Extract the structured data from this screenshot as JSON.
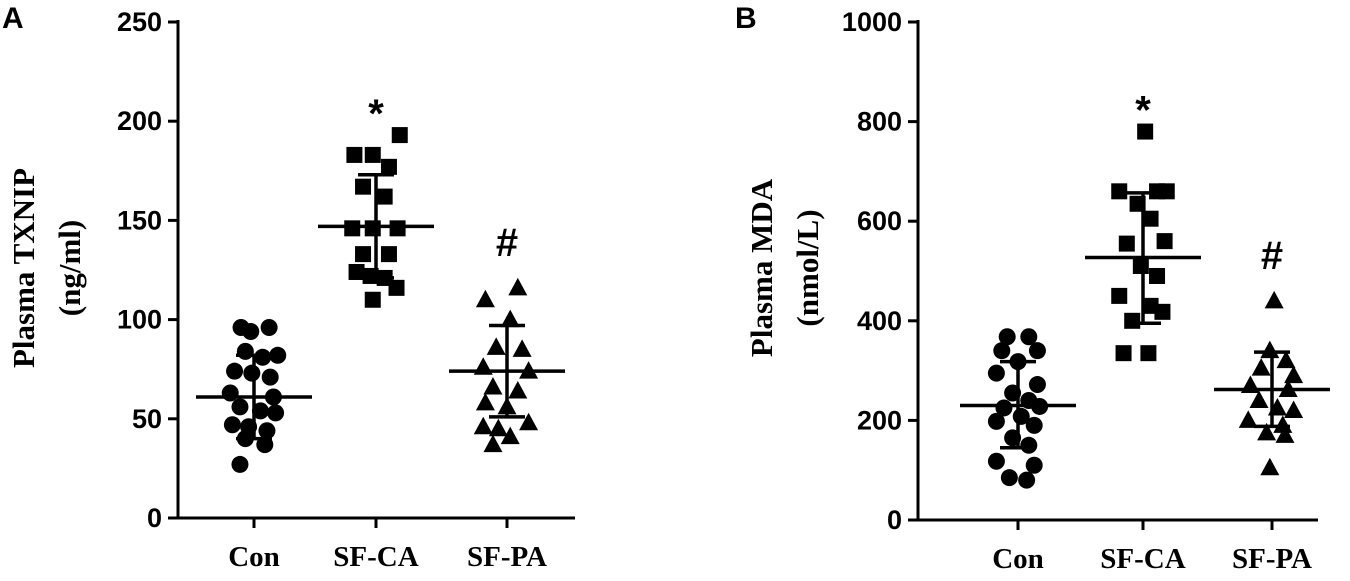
{
  "chart_data": [
    {
      "type": "scatter",
      "panel_label": "A",
      "ylabel_line1": "Plasma TXNIP",
      "ylabel_line2": "(ng/ml)",
      "xlabel": "",
      "categories": [
        "Con",
        "SF-CA",
        "SF-PA"
      ],
      "ylim": [
        0,
        250
      ],
      "yticks": [
        0,
        50,
        100,
        150,
        200,
        250
      ],
      "markers": [
        "circle",
        "square",
        "triangle"
      ],
      "significance": [
        "",
        "*",
        "#"
      ],
      "series": [
        {
          "mean": 61,
          "sd_low": 40,
          "sd_high": 82,
          "points": [
            [
              -0.12,
              96
            ],
            [
              -0.03,
              94
            ],
            [
              0.14,
              96
            ],
            [
              -0.08,
              84
            ],
            [
              0.08,
              81
            ],
            [
              0.22,
              82
            ],
            [
              -0.18,
              74
            ],
            [
              -0.02,
              73
            ],
            [
              0.15,
              71
            ],
            [
              -0.22,
              63
            ],
            [
              0.18,
              61
            ],
            [
              -0.13,
              56
            ],
            [
              0.06,
              54
            ],
            [
              0.2,
              53
            ],
            [
              -0.2,
              47
            ],
            [
              -0.05,
              46
            ],
            [
              0.12,
              44
            ],
            [
              -0.08,
              40
            ],
            [
              0.1,
              37
            ],
            [
              -0.13,
              27
            ]
          ]
        },
        {
          "mean": 147,
          "sd_low": 121,
          "sd_high": 173,
          "points": [
            [
              0.22,
              193
            ],
            [
              -0.2,
              183
            ],
            [
              -0.03,
              183
            ],
            [
              0.12,
              177
            ],
            [
              -0.12,
              167
            ],
            [
              0.08,
              162
            ],
            [
              -0.22,
              146
            ],
            [
              -0.03,
              146
            ],
            [
              0.2,
              146
            ],
            [
              -0.12,
              133
            ],
            [
              0.12,
              133
            ],
            [
              -0.18,
              124
            ],
            [
              -0.05,
              122
            ],
            [
              0.08,
              121
            ],
            [
              0.19,
              116
            ],
            [
              -0.03,
              110
            ]
          ]
        },
        {
          "mean": 74,
          "sd_low": 51,
          "sd_high": 97,
          "points": [
            [
              0.1,
              116
            ],
            [
              -0.2,
              110
            ],
            [
              0.03,
              100
            ],
            [
              -0.1,
              86
            ],
            [
              0.14,
              85
            ],
            [
              -0.22,
              76
            ],
            [
              0.2,
              74
            ],
            [
              -0.13,
              66
            ],
            [
              0.1,
              64
            ],
            [
              -0.2,
              58
            ],
            [
              0.0,
              56
            ],
            [
              -0.22,
              46
            ],
            [
              0.2,
              48
            ],
            [
              -0.08,
              45
            ],
            [
              0.03,
              41
            ],
            [
              -0.13,
              37
            ]
          ]
        }
      ]
    },
    {
      "type": "scatter",
      "panel_label": "B",
      "ylabel_line1": "Plasma MDA",
      "ylabel_line2": "(nmol/L)",
      "xlabel": "",
      "categories": [
        "Con",
        "SF-CA",
        "SF-PA"
      ],
      "ylim": [
        0,
        1000
      ],
      "yticks": [
        0,
        200,
        400,
        600,
        800,
        1000
      ],
      "markers": [
        "circle",
        "square",
        "triangle"
      ],
      "significance": [
        "",
        "*",
        "#"
      ],
      "series": [
        {
          "mean": 230,
          "sd_low": 145,
          "sd_high": 318,
          "points": [
            [
              -0.1,
              368
            ],
            [
              0.1,
              368
            ],
            [
              -0.15,
              340
            ],
            [
              0.18,
              340
            ],
            [
              0.0,
              318
            ],
            [
              -0.2,
              295
            ],
            [
              0.18,
              272
            ],
            [
              -0.05,
              255
            ],
            [
              0.1,
              240
            ],
            [
              -0.13,
              225
            ],
            [
              0.2,
              228
            ],
            [
              0.03,
              208
            ],
            [
              -0.2,
              198
            ],
            [
              0.15,
              190
            ],
            [
              -0.05,
              165
            ],
            [
              0.1,
              150
            ],
            [
              -0.2,
              118
            ],
            [
              0.15,
              110
            ],
            [
              -0.08,
              85
            ],
            [
              0.08,
              80
            ]
          ]
        },
        {
          "mean": 527,
          "sd_low": 395,
          "sd_high": 657,
          "points": [
            [
              0.02,
              780
            ],
            [
              -0.22,
              660
            ],
            [
              0.13,
              660
            ],
            [
              0.22,
              660
            ],
            [
              -0.05,
              635
            ],
            [
              0.07,
              605
            ],
            [
              -0.15,
              555
            ],
            [
              0.2,
              560
            ],
            [
              -0.02,
              510
            ],
            [
              0.13,
              490
            ],
            [
              -0.22,
              450
            ],
            [
              0.07,
              430
            ],
            [
              0.18,
              418
            ],
            [
              -0.1,
              400
            ],
            [
              -0.18,
              335
            ],
            [
              0.05,
              335
            ]
          ]
        },
        {
          "mean": 262,
          "sd_low": 188,
          "sd_high": 337,
          "points": [
            [
              0.02,
              440
            ],
            [
              -0.02,
              340
            ],
            [
              0.13,
              320
            ],
            [
              -0.1,
              305
            ],
            [
              0.2,
              290
            ],
            [
              -0.2,
              270
            ],
            [
              0.15,
              262
            ],
            [
              -0.12,
              240
            ],
            [
              0.05,
              225
            ],
            [
              0.2,
              220
            ],
            [
              -0.22,
              200
            ],
            [
              0.1,
              190
            ],
            [
              -0.05,
              175
            ],
            [
              0.12,
              170
            ],
            [
              -0.02,
              105
            ]
          ]
        }
      ]
    }
  ]
}
